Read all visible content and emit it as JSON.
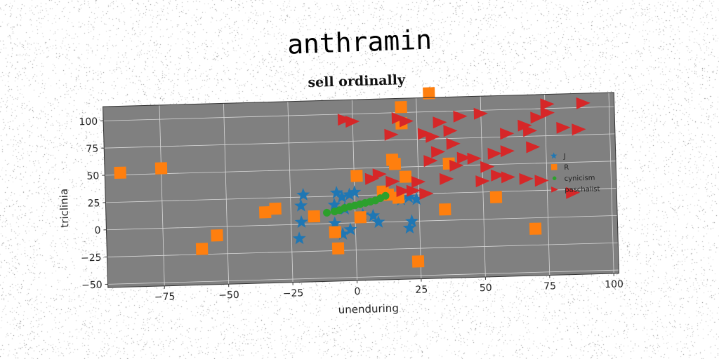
{
  "suptitle": "anthramin",
  "colors": {
    "background": "#808080",
    "grid": "#d9d9d9",
    "series_1": "#1f77b4",
    "series_2": "#ff7f0e",
    "series_3": "#2ca02c",
    "series_4": "#d62728"
  },
  "chart_data": {
    "type": "scatter",
    "title": "sell ordinally",
    "xlabel": "unenduring",
    "ylabel": "triclinia",
    "xlim": [
      -97,
      102
    ],
    "ylim": [
      -53,
      113
    ],
    "xticks": [
      -75,
      -50,
      -25,
      0,
      25,
      50,
      75,
      100
    ],
    "yticks": [
      -50,
      -25,
      0,
      25,
      50,
      75,
      100
    ],
    "xtick_labels": [
      "−75",
      "−50",
      "−25",
      "0",
      "25",
      "50",
      "75",
      "100"
    ],
    "ytick_labels": [
      "−50",
      "−25",
      "0",
      "25",
      "50",
      "75",
      "100"
    ],
    "grid": true,
    "legend_position": "right",
    "series": [
      {
        "name": "J",
        "marker": "star",
        "color": "#1f77b4",
        "points": [
          [
            -20,
            27
          ],
          [
            -21,
            17
          ],
          [
            -21,
            2
          ],
          [
            -22,
            -13
          ],
          [
            -7,
            28
          ],
          [
            -5,
            24
          ],
          [
            -2,
            26
          ],
          [
            0,
            28
          ],
          [
            -8,
            17
          ],
          [
            -4,
            13
          ],
          [
            -8,
            0
          ],
          [
            -5,
            -10
          ],
          [
            -2,
            -6
          ],
          [
            3,
            7
          ],
          [
            7,
            6
          ],
          [
            9,
            0
          ],
          [
            18,
            20
          ],
          [
            21,
            22
          ],
          [
            24,
            20
          ],
          [
            22,
            0
          ],
          [
            21,
            -6
          ]
        ]
      },
      {
        "name": "R",
        "marker": "square",
        "color": "#ff7f0e",
        "points": [
          [
            -91,
            52
          ],
          [
            -75,
            55
          ],
          [
            -60,
            -20
          ],
          [
            -54,
            -8
          ],
          [
            -35,
            12
          ],
          [
            -31,
            15
          ],
          [
            -16,
            7
          ],
          [
            -8,
            -8
          ],
          [
            -7,
            -23
          ],
          [
            1,
            43
          ],
          [
            2,
            5
          ],
          [
            15,
            57
          ],
          [
            16,
            53
          ],
          [
            11,
            28
          ],
          [
            13,
            25
          ],
          [
            20,
            41
          ],
          [
            19,
            105
          ],
          [
            19,
            90
          ],
          [
            30,
            117
          ],
          [
            17,
            22
          ],
          [
            35,
            10
          ],
          [
            37,
            52
          ],
          [
            55,
            20
          ],
          [
            70,
            -10
          ],
          [
            24,
            -37
          ]
        ]
      },
      {
        "name": "cynicism",
        "marker": "circle",
        "color": "#2ca02c",
        "points": [
          [
            -11,
            10
          ],
          [
            -8,
            11
          ],
          [
            -6,
            12
          ],
          [
            -4,
            14
          ],
          [
            -2,
            15
          ],
          [
            0,
            16
          ],
          [
            2,
            17
          ],
          [
            4,
            18
          ],
          [
            6,
            19
          ],
          [
            8,
            20
          ],
          [
            10,
            22
          ],
          [
            12,
            24
          ]
        ]
      },
      {
        "name": "paschalist",
        "marker": "triangle-right",
        "color": "#d62728",
        "points": [
          [
            -3,
            95
          ],
          [
            0,
            93
          ],
          [
            18,
            95
          ],
          [
            21,
            92
          ],
          [
            15,
            80
          ],
          [
            28,
            80
          ],
          [
            31,
            77
          ],
          [
            34,
            90
          ],
          [
            38,
            82
          ],
          [
            42,
            95
          ],
          [
            50,
            97
          ],
          [
            39,
            70
          ],
          [
            60,
            78
          ],
          [
            67,
            85
          ],
          [
            69,
            80
          ],
          [
            72,
            92
          ],
          [
            76,
            104
          ],
          [
            76,
            96
          ],
          [
            82,
            82
          ],
          [
            88,
            80
          ],
          [
            90,
            104
          ],
          [
            70,
            65
          ],
          [
            60,
            62
          ],
          [
            55,
            60
          ],
          [
            47,
            56
          ],
          [
            52,
            48
          ],
          [
            40,
            50
          ],
          [
            43,
            57
          ],
          [
            56,
            40
          ],
          [
            60,
            38
          ],
          [
            67,
            36
          ],
          [
            73,
            34
          ],
          [
            50,
            35
          ],
          [
            36,
            38
          ],
          [
            10,
            44
          ],
          [
            7,
            40
          ],
          [
            15,
            37
          ],
          [
            25,
            36
          ],
          [
            23,
            28
          ],
          [
            28,
            25
          ],
          [
            19,
            28
          ],
          [
            85,
            22
          ],
          [
            30,
            55
          ],
          [
            33,
            63
          ]
        ]
      }
    ]
  }
}
